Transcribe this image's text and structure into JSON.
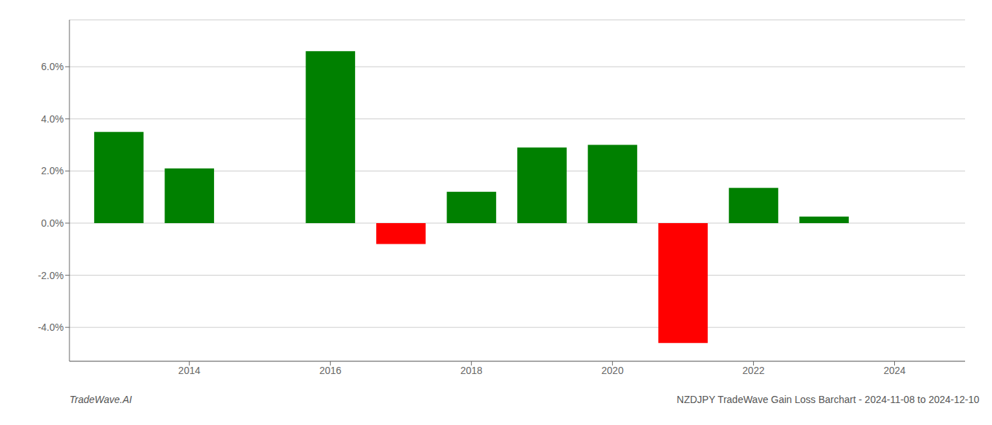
{
  "chart_data": {
    "type": "bar",
    "title": "NZDJPY TradeWave Gain Loss Barchart - 2024-11-08 to 2024-12-10",
    "annotations": [
      "TradeWave.AI"
    ],
    "x": [
      2013,
      2014,
      2016,
      2017,
      2018,
      2019,
      2020,
      2021,
      2022,
      2023
    ],
    "values": [
      3.5,
      2.1,
      6.6,
      -0.8,
      1.2,
      2.9,
      3.0,
      -4.6,
      1.35,
      0.25
    ],
    "colors": [
      "#008000",
      "#008000",
      "#008000",
      "#ff0000",
      "#008000",
      "#008000",
      "#008000",
      "#ff0000",
      "#008000",
      "#008000"
    ],
    "xlim": [
      2012.3,
      2025.0
    ],
    "xticks": [
      2014,
      2016,
      2018,
      2020,
      2022,
      2024
    ],
    "ylim": [
      -5.3,
      7.8
    ],
    "yticks": [
      {
        "value": -4.0,
        "label": "-4.0%"
      },
      {
        "value": -2.0,
        "label": "-2.0%"
      },
      {
        "value": 0.0,
        "label": "0.0%"
      },
      {
        "value": 2.0,
        "label": "2.0%"
      },
      {
        "value": 4.0,
        "label": "4.0%"
      },
      {
        "value": 6.0,
        "label": "6.0%"
      }
    ],
    "grid": true
  }
}
